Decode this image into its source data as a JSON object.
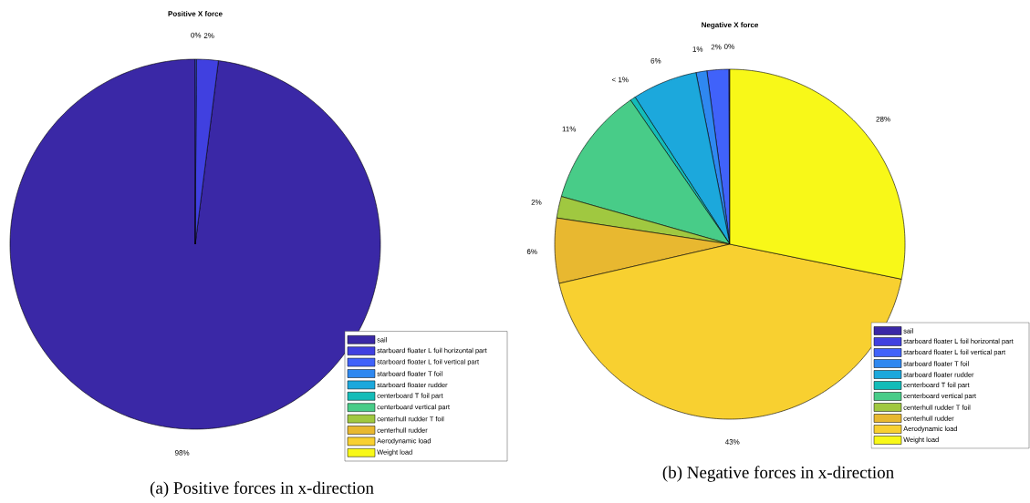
{
  "chart_data": [
    {
      "type": "pie",
      "title": "Positive X force",
      "categories": [
        "sail",
        "starboard floater L foil horizontal part",
        "starboard floater L foil vertical part",
        "starboard floater T foil",
        "starboard floater rudder",
        "centerboard T foil part",
        "centerboard vertical part",
        "centerhull rudder T foil",
        "centerhull rudder",
        "Aerodynamic load",
        "Weight load"
      ],
      "values": [
        98,
        1.9,
        0.1,
        null,
        null,
        null,
        null,
        null,
        null,
        null,
        null
      ],
      "value_labels": [
        "98%",
        "2%",
        "0%",
        null,
        null,
        null,
        null,
        null,
        null,
        null,
        null
      ],
      "colors": [
        "#3a28a6",
        "#4040e0",
        "#4062fa",
        "#2f88f0",
        "#1ca8dc",
        "#14bcb8",
        "#48cc88",
        "#a0c840",
        "#e8b830",
        "#f8d030",
        "#f8f818"
      ],
      "legend": "bottom right",
      "annotations": [
        "(a) Positive forces in x-direction"
      ]
    },
    {
      "type": "pie",
      "title": "Negative X force",
      "categories": [
        "sail",
        "starboard floater L foil horizontal part",
        "starboard floater L foil vertical part",
        "starboard floater T foil",
        "starboard floater rudder",
        "centerboard T foil part",
        "centerboard vertical part",
        "centerhull rudder T foil",
        "centerhull rudder",
        "Aerodynamic load",
        "Weight load"
      ],
      "values": [
        null,
        0.1,
        2,
        1,
        6,
        0.5,
        11,
        2,
        6,
        43.2,
        28.2
      ],
      "value_labels": [
        null,
        "0%",
        "2%",
        "1%",
        "6%",
        "< 1%",
        "11%",
        "2%",
        "6%",
        "43%",
        "28%"
      ],
      "colors": [
        "#3a28a6",
        "#4040e0",
        "#4062fa",
        "#2f88f0",
        "#1ca8dc",
        "#14bcb8",
        "#48cc88",
        "#a0c840",
        "#e8b830",
        "#f8d030",
        "#f8f818"
      ],
      "legend": "bottom right",
      "annotations": [
        "(b) Negative forces in x-direction"
      ]
    }
  ]
}
